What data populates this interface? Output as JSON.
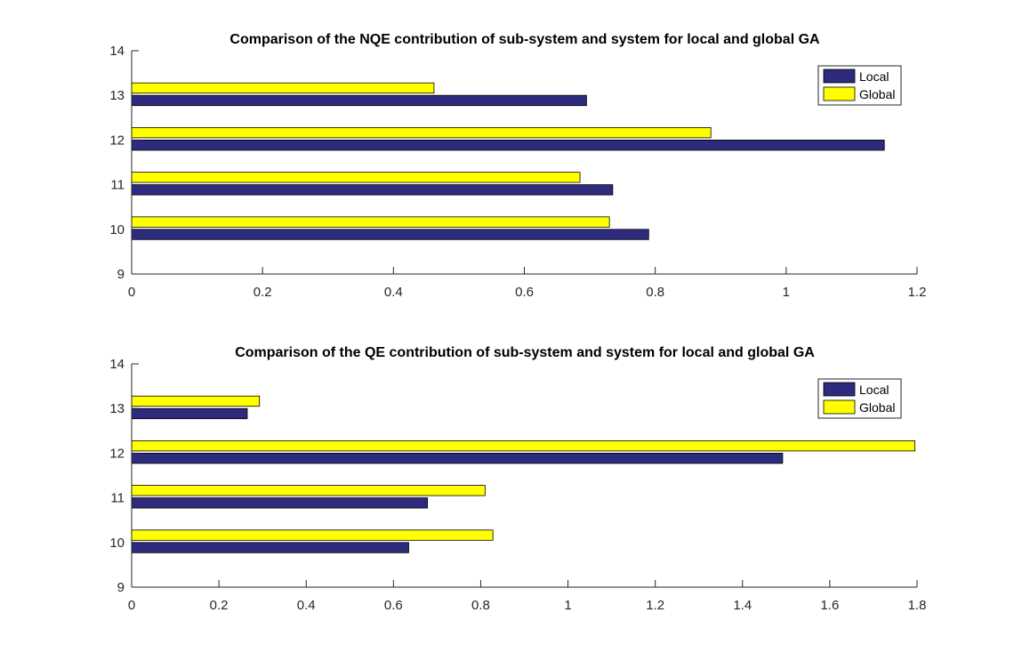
{
  "chart_data": [
    {
      "type": "bar",
      "orientation": "horizontal",
      "title": "Comparison of the NQE contribution of sub-system and system for local and global GA",
      "categories": [
        10,
        11,
        12,
        13
      ],
      "series": [
        {
          "name": "Local",
          "values": [
            0.79,
            0.735,
            1.15,
            0.695
          ],
          "color": "#2E2A7D"
        },
        {
          "name": "Global",
          "values": [
            0.73,
            0.685,
            0.885,
            0.462
          ],
          "color": "#FFFF00"
        }
      ],
      "xlim": [
        0,
        1.2
      ],
      "ylim": [
        9,
        14
      ],
      "xticks": [
        "0",
        "0.2",
        "0.4",
        "0.6",
        "0.8",
        "1",
        "1.2"
      ],
      "yticks": [
        "9",
        "10",
        "11",
        "12",
        "13",
        "14"
      ],
      "legend_position": "top-right",
      "grid": false
    },
    {
      "type": "bar",
      "orientation": "horizontal",
      "title": "Comparison of the QE contribution of sub-system and system for local and global GA",
      "categories": [
        10,
        11,
        12,
        13
      ],
      "series": [
        {
          "name": "Local",
          "values": [
            0.635,
            0.678,
            1.492,
            0.265
          ],
          "color": "#2E2A7D"
        },
        {
          "name": "Global",
          "values": [
            0.828,
            0.81,
            1.795,
            0.293
          ],
          "color": "#FFFF00"
        }
      ],
      "xlim": [
        0,
        1.8
      ],
      "ylim": [
        9,
        14
      ],
      "xticks": [
        "0",
        "0.2",
        "0.4",
        "0.6",
        "0.8",
        "1",
        "1.2",
        "1.4",
        "1.6",
        "1.8"
      ],
      "yticks": [
        "9",
        "10",
        "11",
        "12",
        "13",
        "14"
      ],
      "legend_position": "top-right",
      "grid": false
    }
  ]
}
